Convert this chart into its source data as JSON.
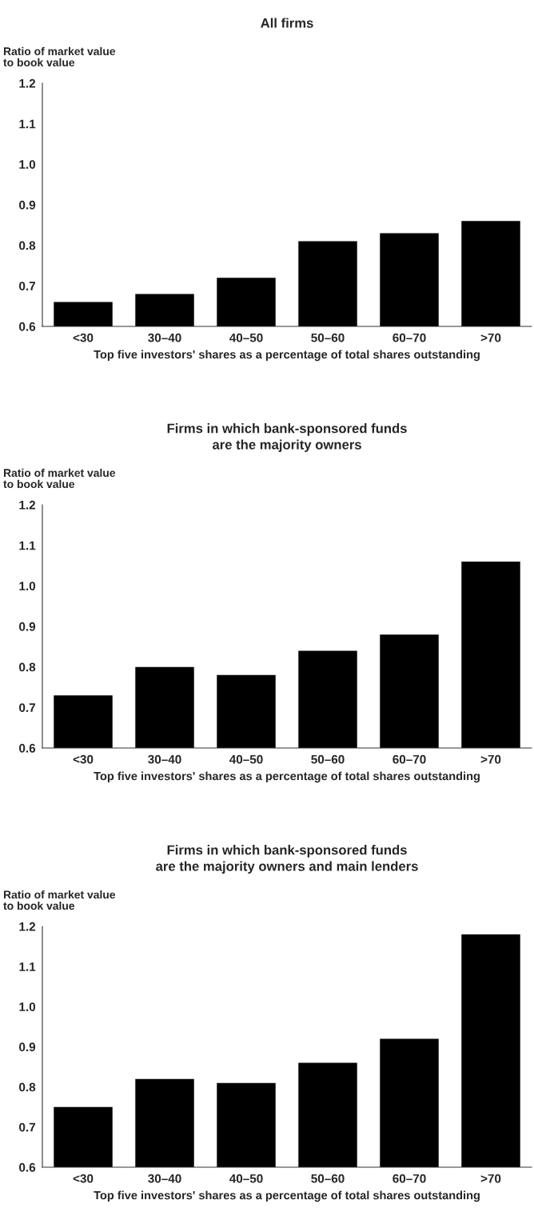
{
  "chart_data": [
    {
      "type": "bar",
      "title": "All firms",
      "ylabel": "Ratio of market value\nto book value",
      "xlabel": "Top five investors' shares as a percentage of total shares outstanding",
      "categories": [
        "<30",
        "30–40",
        "40–50",
        "50–60",
        "60–70",
        ">70"
      ],
      "values": [
        0.66,
        0.68,
        0.72,
        0.81,
        0.83,
        0.86
      ],
      "color": "#000000",
      "ylim": [
        0.6,
        1.2
      ],
      "yticks": [
        {
          "value": 0.6,
          "label": "0.6"
        },
        {
          "value": 0.7,
          "label": "0.7"
        },
        {
          "value": 0.8,
          "label": "0.8"
        },
        {
          "value": 0.9,
          "label": "0.9"
        },
        {
          "value": 1.0,
          "label": "1.0"
        },
        {
          "value": 1.1,
          "label": "1.1"
        },
        {
          "value": 1.2,
          "label": "1.2"
        }
      ],
      "grid": false,
      "legend": false
    },
    {
      "type": "bar",
      "title": "Firms in which bank-sponsored funds\nare the majority owners",
      "ylabel": "Ratio of market value\nto book value",
      "xlabel": "Top five investors' shares as a percentage of total shares outstanding",
      "categories": [
        "<30",
        "30–40",
        "40–50",
        "50–60",
        "60–70",
        ">70"
      ],
      "values": [
        0.73,
        0.8,
        0.78,
        0.84,
        0.88,
        1.06
      ],
      "color": "#000000",
      "ylim": [
        0.6,
        1.2
      ],
      "yticks": [
        {
          "value": 0.6,
          "label": "0.6"
        },
        {
          "value": 0.7,
          "label": "0.7"
        },
        {
          "value": 0.8,
          "label": "0.8"
        },
        {
          "value": 0.9,
          "label": "0.9"
        },
        {
          "value": 1.0,
          "label": "1.0"
        },
        {
          "value": 1.1,
          "label": "1.1"
        },
        {
          "value": 1.2,
          "label": "1.2"
        }
      ],
      "grid": false,
      "legend": false
    },
    {
      "type": "bar",
      "title": "Firms in which bank-sponsored funds\nare the majority owners and main lenders",
      "ylabel": "Ratio of market value\nto book value",
      "xlabel": "Top five investors' shares as a percentage of total shares outstanding",
      "categories": [
        "<30",
        "30–40",
        "40–50",
        "50–60",
        "60–70",
        ">70"
      ],
      "values": [
        0.75,
        0.82,
        0.81,
        0.86,
        0.92,
        1.18
      ],
      "color": "#000000",
      "ylim": [
        0.6,
        1.2
      ],
      "yticks": [
        {
          "value": 0.6,
          "label": "0.6"
        },
        {
          "value": 0.7,
          "label": "0.7"
        },
        {
          "value": 0.8,
          "label": "0.8"
        },
        {
          "value": 0.9,
          "label": "0.9"
        },
        {
          "value": 1.0,
          "label": "1.0"
        },
        {
          "value": 1.1,
          "label": "1.1"
        },
        {
          "value": 1.2,
          "label": "1.2"
        }
      ],
      "grid": false,
      "legend": false
    }
  ]
}
